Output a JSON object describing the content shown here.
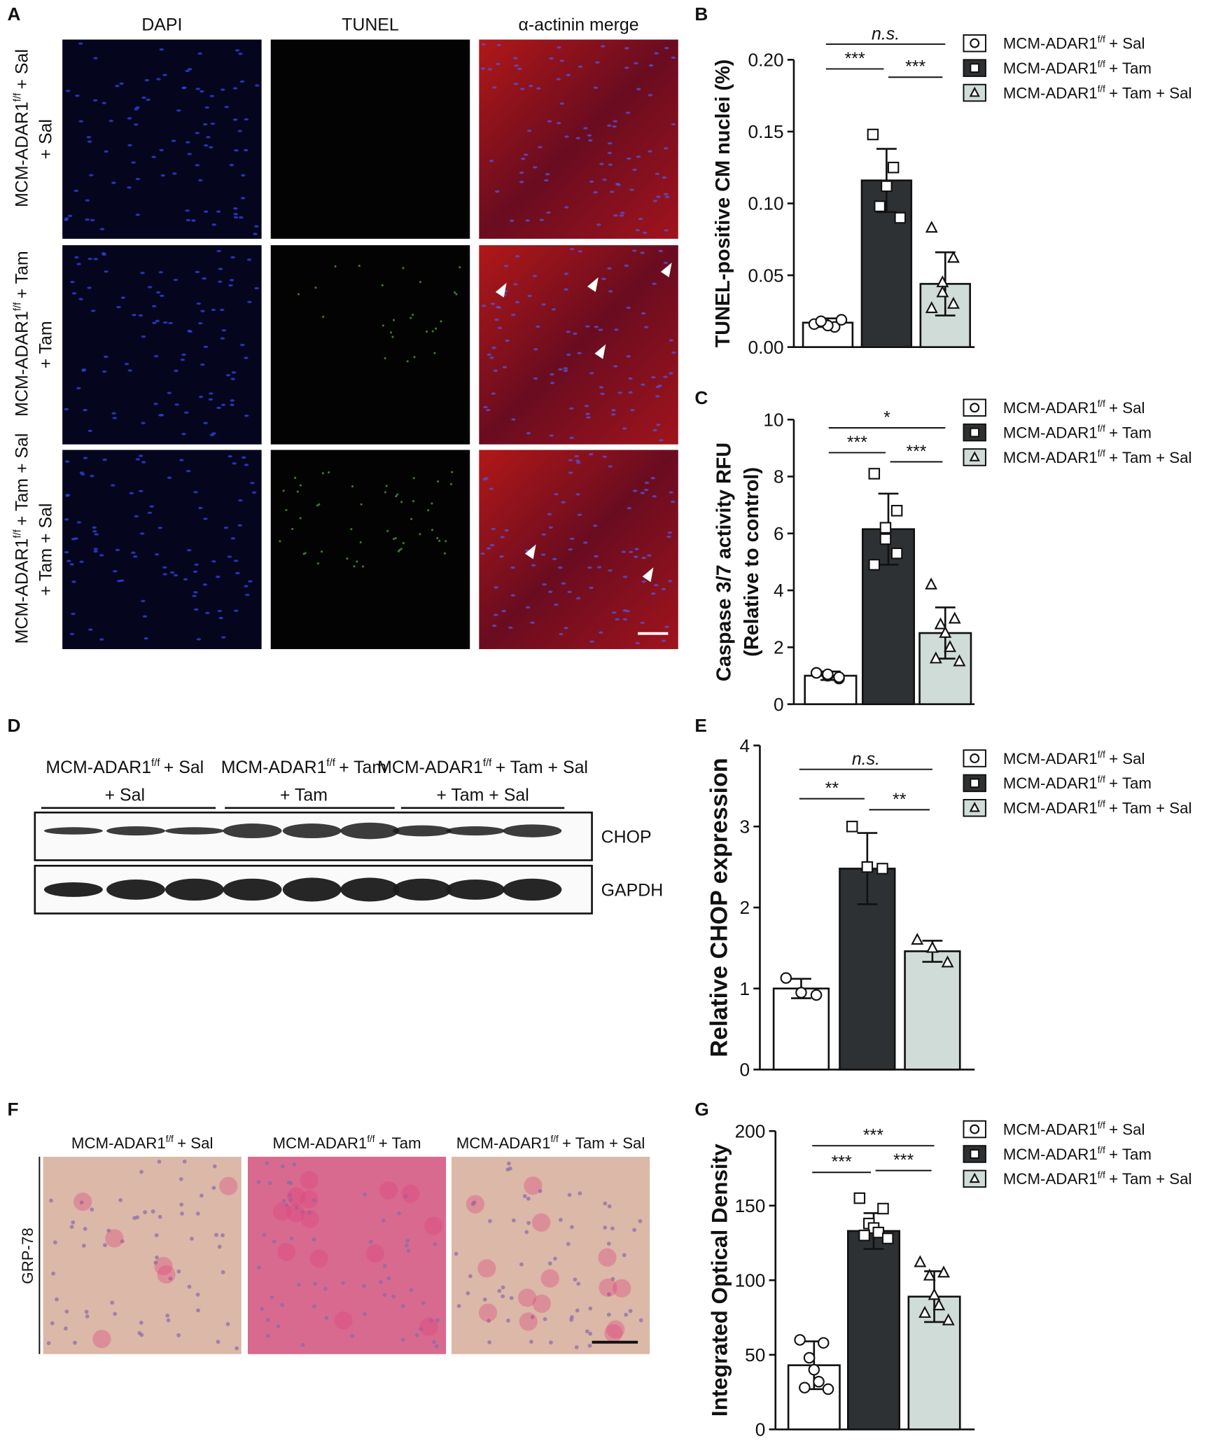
{
  "panel_labels": [
    "A",
    "B",
    "C",
    "D",
    "E",
    "F",
    "G"
  ],
  "panel_a": {
    "columns": [
      "DAPI",
      "TUNEL",
      "α-actinin merge"
    ],
    "rows": [
      [
        "MCM-ADAR1",
        "f/f",
        "+ Sal"
      ],
      [
        "MCM-ADAR1",
        "f/f",
        "+ Tam"
      ],
      [
        "MCM-ADAR1",
        "f/f",
        "+ Tam + Sal"
      ]
    ]
  },
  "panel_d": {
    "groups": [
      [
        "MCM-ADAR1",
        "f/f",
        "+ Sal"
      ],
      [
        "MCM-ADAR1",
        "f/f",
        "+ Tam"
      ],
      [
        "MCM-ADAR1",
        "f/f",
        "+ Tam + Sal"
      ]
    ],
    "bands": [
      "CHOP",
      "GAPDH"
    ]
  },
  "panel_f": {
    "columns": [
      [
        "MCM-ADAR1",
        "f/f",
        "+ Sal"
      ],
      [
        "MCM-ADAR1",
        "f/f",
        "+ Tam"
      ],
      [
        "MCM-ADAR1",
        "f/f",
        "+ Tam + Sal"
      ]
    ],
    "row_label": "GRP-78"
  },
  "chart_data": [
    {
      "type": "bar",
      "ylabel": [
        "TUNEL-positive CM nuclei (%)"
      ],
      "ylim": [
        0,
        0.2
      ],
      "yticks": [
        {
          "value": 0,
          "label": "0.00"
        },
        {
          "value": 0.05,
          "label": "0.05"
        },
        {
          "value": 0.1,
          "label": "0.10"
        },
        {
          "value": 0.15,
          "label": "0.15"
        },
        {
          "value": 0.2,
          "label": "0.20"
        }
      ],
      "series": [
        {
          "name": [
            "MCM-ADAR1",
            "f/f",
            "+ Sal"
          ],
          "color": "#ffffff",
          "marker": "circle",
          "mean": 0.017,
          "error": 0.003,
          "points": [
            0.016,
            0.014,
            0.015,
            0.018,
            0.019
          ]
        },
        {
          "name": [
            "MCM-ADAR1",
            "f/f",
            "+ Tam"
          ],
          "color": "#2e3133",
          "marker": "square",
          "mean": 0.116,
          "error": 0.022,
          "points": [
            0.148,
            0.125,
            0.112,
            0.098,
            0.09
          ]
        },
        {
          "name": [
            "MCM-ADAR1",
            "f/f",
            "+ Tam + Sal"
          ],
          "color": "#d0dcd7",
          "marker": "triangle",
          "mean": 0.044,
          "error": 0.022,
          "points": [
            0.083,
            0.062,
            0.045,
            0.038,
            0.03,
            0.027
          ]
        }
      ],
      "annotations": [
        {
          "text": "n.s.",
          "between": [
            0,
            2
          ]
        },
        {
          "text": "***",
          "between": [
            0,
            1
          ]
        },
        {
          "text": "***",
          "between": [
            1,
            2
          ]
        }
      ]
    },
    {
      "type": "bar",
      "ylabel": [
        "Caspase 3/7 activity RFU",
        "(Relative to control)"
      ],
      "ylim": [
        0,
        10
      ],
      "yticks": [
        0,
        2,
        4,
        6,
        8,
        10
      ],
      "series": [
        {
          "name": [
            "MCM-ADAR1",
            "f/f",
            "+ Sal"
          ],
          "color": "#ffffff",
          "marker": "circle",
          "mean": 1.0,
          "error": 0.15,
          "points": [
            1.1,
            0.9,
            1.0,
            1.05,
            0.95,
            1.1
          ]
        },
        {
          "name": [
            "MCM-ADAR1",
            "f/f",
            "+ Tam"
          ],
          "color": "#2e3133",
          "marker": "square",
          "mean": 6.15,
          "error": 1.25,
          "points": [
            8.1,
            6.8,
            6.2,
            5.8,
            5.3,
            4.9
          ]
        },
        {
          "name": [
            "MCM-ADAR1",
            "f/f",
            "+ Tam + Sal"
          ],
          "color": "#d0dcd7",
          "marker": "triangle",
          "mean": 2.5,
          "error": 0.9,
          "points": [
            4.2,
            3.0,
            2.8,
            2.5,
            2.0,
            1.6,
            1.5
          ]
        }
      ],
      "annotations": [
        {
          "text": "*",
          "between": [
            0,
            2
          ]
        },
        {
          "text": "***",
          "between": [
            0,
            1
          ]
        },
        {
          "text": "***",
          "between": [
            1,
            2
          ]
        }
      ]
    },
    {
      "type": "bar",
      "ylabel": [
        "Relative CHOP expression"
      ],
      "ylim": [
        0,
        4
      ],
      "yticks": [
        0,
        1,
        2,
        3,
        4
      ],
      "series": [
        {
          "name": [
            "MCM-ADAR1",
            "f/f",
            "+ Sal"
          ],
          "color": "#ffffff",
          "marker": "circle",
          "mean": 1.0,
          "error": 0.12,
          "points": [
            1.13,
            0.95,
            0.92
          ]
        },
        {
          "name": [
            "MCM-ADAR1",
            "f/f",
            "+ Tam"
          ],
          "color": "#2e3133",
          "marker": "square",
          "mean": 2.48,
          "error": 0.44,
          "points": [
            3.0,
            2.5,
            2.48
          ]
        },
        {
          "name": [
            "MCM-ADAR1",
            "f/f",
            "+ Tam + Sal"
          ],
          "color": "#d0dcd7",
          "marker": "triangle",
          "mean": 1.46,
          "error": 0.13,
          "points": [
            1.6,
            1.5,
            1.32
          ]
        }
      ],
      "annotations": [
        {
          "text": "n.s.",
          "between": [
            0,
            2
          ]
        },
        {
          "text": "**",
          "between": [
            0,
            1
          ]
        },
        {
          "text": "**",
          "between": [
            1,
            2
          ]
        }
      ]
    },
    {
      "type": "bar",
      "ylabel": [
        "Integrated Optical Density"
      ],
      "ylim": [
        0,
        200
      ],
      "yticks": [
        0,
        50,
        100,
        150,
        200
      ],
      "series": [
        {
          "name": [
            "MCM-ADAR1",
            "f/f",
            "+ Sal"
          ],
          "color": "#ffffff",
          "marker": "circle",
          "mean": 43,
          "error": 16,
          "points": [
            60,
            58,
            48,
            40,
            32,
            28,
            27
          ]
        },
        {
          "name": [
            "MCM-ADAR1",
            "f/f",
            "+ Tam"
          ],
          "color": "#2e3133",
          "marker": "square",
          "mean": 133,
          "error": 12,
          "points": [
            155,
            148,
            138,
            135,
            132,
            130,
            128
          ]
        },
        {
          "name": [
            "MCM-ADAR1",
            "f/f",
            "+ Tam + Sal"
          ],
          "color": "#d0dcd7",
          "marker": "triangle",
          "mean": 89,
          "error": 17,
          "points": [
            112,
            105,
            103,
            90,
            83,
            78,
            73
          ]
        }
      ],
      "annotations": [
        {
          "text": "***",
          "between": [
            0,
            2
          ]
        },
        {
          "text": "***",
          "between": [
            0,
            1
          ]
        },
        {
          "text": "***",
          "between": [
            1,
            2
          ]
        }
      ]
    }
  ]
}
